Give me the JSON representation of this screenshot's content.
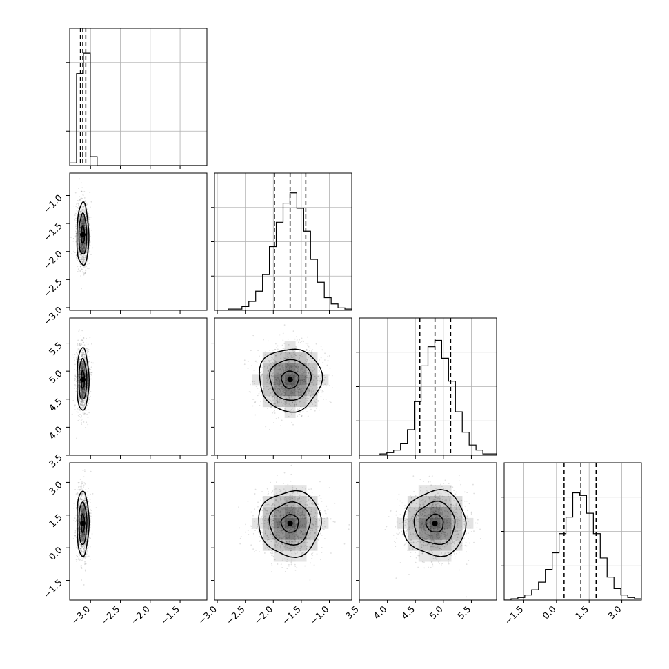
{
  "chart_data": {
    "type": "corner",
    "panel_kinds": [
      "histogram",
      "2d-histogram-contour-scatter"
    ],
    "style": {
      "line_color": "#000000",
      "grid_color": "#b0b0b0",
      "scatter_color": "#000000",
      "density_fill": "#000000",
      "background": "#ffffff"
    },
    "params": [
      {
        "range": [
          -3.35,
          -1.05
        ],
        "ticks": [
          -3.0,
          -2.5,
          -2.0,
          -1.5
        ],
        "tick_labels": [
          "−3.0",
          "−2.5",
          "−2.0",
          "−1.5"
        ],
        "quantiles": [
          -3.17,
          -3.13,
          -3.08
        ],
        "hist_counts": [
          2,
          72,
          88,
          7,
          0,
          0,
          0,
          0,
          0,
          0,
          0,
          0,
          0,
          0,
          0,
          0,
          0,
          0,
          0,
          0
        ],
        "hist_max": 100,
        "grid": true
      },
      {
        "range": [
          -3.05,
          -0.6
        ],
        "ticks": [
          -3.0,
          -2.5,
          -2.0,
          -1.5,
          -1.0
        ],
        "tick_labels": [
          "−3.0",
          "−2.5",
          "−2.0",
          "−1.5",
          "−1.0"
        ],
        "quantiles": [
          -1.98,
          -1.7,
          -1.42
        ],
        "hist_counts": [
          0,
          0,
          1,
          1,
          3,
          7,
          15,
          28,
          50,
          69,
          84,
          92,
          80,
          62,
          40,
          22,
          10,
          5,
          2,
          1
        ],
        "hist_max": 100,
        "grid": true
      },
      {
        "range": [
          3.5,
          5.95
        ],
        "ticks": [
          3.5,
          4.0,
          4.5,
          5.0,
          5.5
        ],
        "tick_labels": [
          "3.5",
          "4.0",
          "4.5",
          "5.0",
          "5.5"
        ],
        "quantiles": [
          4.58,
          4.85,
          5.13
        ],
        "hist_counts": [
          0,
          0,
          0,
          1,
          2,
          4,
          9,
          20,
          42,
          70,
          85,
          90,
          76,
          58,
          34,
          18,
          8,
          4,
          1,
          1
        ],
        "hist_max": 100,
        "grid": true
      },
      {
        "range": [
          -2.4,
          3.9
        ],
        "ticks": [
          -1.5,
          0.0,
          1.5,
          3.0
        ],
        "tick_labels": [
          "−1.5",
          "0.0",
          "1.5",
          "3.0"
        ],
        "quantiles": [
          0.35,
          1.12,
          1.82
        ],
        "hist_counts": [
          0,
          1,
          2,
          4,
          8,
          14,
          24,
          37,
          52,
          65,
          84,
          82,
          68,
          52,
          33,
          18,
          9,
          4,
          2,
          1
        ],
        "hist_max": 100,
        "grid": true
      }
    ],
    "pairs": [
      {
        "x": 0,
        "y": 1,
        "cx": -3.13,
        "cy": -1.7,
        "sx": 0.05,
        "sy": 0.28,
        "contour_levels": 3
      },
      {
        "x": 0,
        "y": 2,
        "cx": -3.13,
        "cy": 4.85,
        "sx": 0.05,
        "sy": 0.28,
        "contour_levels": 3
      },
      {
        "x": 0,
        "y": 3,
        "cx": -3.13,
        "cy": 1.12,
        "sx": 0.05,
        "sy": 0.75,
        "contour_levels": 3
      },
      {
        "x": 1,
        "y": 2,
        "cx": -1.7,
        "cy": 4.85,
        "sx": 0.28,
        "sy": 0.28,
        "contour_levels": 3
      },
      {
        "x": 1,
        "y": 3,
        "cx": -1.7,
        "cy": 1.12,
        "sx": 0.28,
        "sy": 0.75,
        "contour_levels": 3
      },
      {
        "x": 2,
        "y": 3,
        "cx": 4.85,
        "cy": 1.12,
        "sx": 0.28,
        "sy": 0.75,
        "contour_levels": 3
      }
    ]
  }
}
